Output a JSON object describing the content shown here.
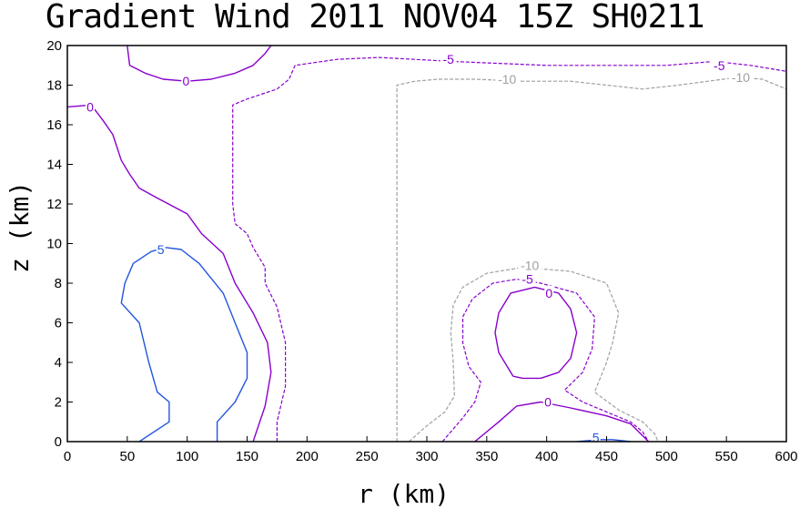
{
  "chart_data": {
    "type": "contour",
    "title": "Gradient Wind 2011 NOV04 15Z  SH0211",
    "xlabel": "r (km)",
    "ylabel": "z (km)",
    "xlim": [
      0,
      600
    ],
    "ylim": [
      0,
      20
    ],
    "xticks": [
      0,
      50,
      100,
      150,
      200,
      250,
      300,
      350,
      400,
      450,
      500,
      550,
      600
    ],
    "yticks": [
      0,
      2,
      4,
      6,
      8,
      10,
      12,
      14,
      16,
      18,
      20
    ],
    "contours": [
      {
        "level": 5,
        "color": "#2255dd",
        "dashed": false,
        "label": "5",
        "points": [
          [
            60,
            0
          ],
          [
            85,
            1
          ],
          [
            85,
            2
          ],
          [
            75,
            2.5
          ],
          [
            68,
            4
          ],
          [
            60,
            6
          ],
          [
            45,
            7
          ],
          [
            48,
            8
          ],
          [
            55,
            9
          ],
          [
            70,
            9.6
          ],
          [
            82,
            9.8
          ],
          [
            95,
            9.7
          ],
          [
            110,
            9
          ],
          [
            130,
            7.5
          ],
          [
            140,
            6
          ],
          [
            150,
            4.5
          ],
          [
            150,
            3.2
          ],
          [
            140,
            2
          ],
          [
            125,
            1
          ],
          [
            125,
            0
          ]
        ]
      },
      {
        "level": 5,
        "color": "#2255dd",
        "dashed": false,
        "label": "5",
        "points": [
          [
            425,
            0
          ],
          [
            445,
            0.1
          ],
          [
            455,
            0.1
          ],
          [
            470,
            0
          ],
          [
            478,
            -0.1
          ]
        ]
      },
      {
        "level": 0,
        "color": "#8800cc",
        "dashed": false,
        "label": "0",
        "points": [
          [
            0,
            16.9
          ],
          [
            20,
            17
          ],
          [
            30,
            16.2
          ],
          [
            38,
            15.5
          ],
          [
            45,
            14.2
          ],
          [
            52,
            13.5
          ],
          [
            60,
            12.8
          ],
          [
            75,
            12.3
          ],
          [
            100,
            11.5
          ],
          [
            112,
            10.5
          ],
          [
            130,
            9.5
          ],
          [
            140,
            8
          ],
          [
            155,
            6.5
          ],
          [
            167,
            5
          ],
          [
            170,
            3.5
          ],
          [
            165,
            1.8
          ],
          [
            155,
            0
          ]
        ]
      },
      {
        "level": 0,
        "color": "#8800cc",
        "dashed": false,
        "label": "0",
        "points": [
          [
            50,
            20
          ],
          [
            52,
            19
          ],
          [
            65,
            18.6
          ],
          [
            80,
            18.3
          ],
          [
            100,
            18.2
          ],
          [
            120,
            18.3
          ],
          [
            140,
            18.6
          ],
          [
            155,
            19
          ],
          [
            165,
            19.6
          ],
          [
            170,
            20
          ]
        ]
      },
      {
        "level": 0,
        "color": "#8800cc",
        "dashed": false,
        "label": "0",
        "points": [
          [
            372,
            3.3
          ],
          [
            380,
            3.2
          ],
          [
            395,
            3.2
          ],
          [
            410,
            3.5
          ],
          [
            420,
            4.2
          ],
          [
            425,
            5.5
          ],
          [
            420,
            6.7
          ],
          [
            410,
            7.5
          ],
          [
            390,
            7.8
          ],
          [
            370,
            7.5
          ],
          [
            360,
            6.5
          ],
          [
            357,
            5.5
          ],
          [
            360,
            4.5
          ],
          [
            372,
            3.3
          ]
        ]
      },
      {
        "level": 0,
        "color": "#8800cc",
        "dashed": false,
        "label": "0",
        "points": [
          [
            340,
            0
          ],
          [
            360,
            1
          ],
          [
            375,
            1.8
          ],
          [
            395,
            2
          ],
          [
            420,
            1.7
          ],
          [
            450,
            1.3
          ],
          [
            470,
            0.9
          ],
          [
            485,
            0
          ]
        ]
      },
      {
        "level": -5,
        "color": "#8800cc",
        "dashed": true,
        "label": "-5",
        "points": [
          [
            175,
            0
          ],
          [
            175,
            1
          ],
          [
            182,
            2.8
          ],
          [
            182,
            5
          ],
          [
            175,
            6.8
          ],
          [
            165,
            8
          ],
          [
            165,
            8.8
          ],
          [
            155,
            9.8
          ],
          [
            150,
            10.5
          ],
          [
            140,
            11
          ],
          [
            138,
            12
          ],
          [
            138,
            14
          ],
          [
            138,
            17
          ],
          [
            150,
            17.3
          ],
          [
            175,
            17.8
          ],
          [
            185,
            18.3
          ],
          [
            190,
            19
          ],
          [
            225,
            19.3
          ],
          [
            260,
            19.4
          ],
          [
            290,
            19.3
          ],
          [
            320,
            19.2
          ],
          [
            360,
            19.1
          ],
          [
            400,
            19
          ],
          [
            450,
            19
          ],
          [
            500,
            19
          ],
          [
            540,
            19.2
          ],
          [
            570,
            19
          ],
          [
            600,
            18.7
          ]
        ]
      },
      {
        "level": -5,
        "color": "#8800cc",
        "dashed": true,
        "label": "-5",
        "points": [
          [
            313,
            0
          ],
          [
            330,
            1.2
          ],
          [
            340,
            2
          ],
          [
            345,
            3
          ],
          [
            335,
            3.8
          ],
          [
            330,
            5
          ],
          [
            330,
            6.3
          ],
          [
            338,
            7.2
          ],
          [
            355,
            8
          ],
          [
            375,
            8.2
          ],
          [
            395,
            8
          ],
          [
            425,
            7.5
          ],
          [
            440,
            6.3
          ],
          [
            438,
            4.7
          ],
          [
            430,
            3.5
          ],
          [
            415,
            2.6
          ],
          [
            430,
            2
          ],
          [
            450,
            1.5
          ],
          [
            470,
            1
          ],
          [
            480,
            0.5
          ],
          [
            485,
            0
          ]
        ]
      },
      {
        "level": -10,
        "color": "#a0a0a0",
        "dashed": true,
        "label": "-10",
        "points": [
          [
            275,
            0
          ],
          [
            275,
            3
          ],
          [
            275,
            8
          ],
          [
            275,
            12
          ],
          [
            275,
            16
          ],
          [
            275,
            18
          ],
          [
            290,
            18.2
          ],
          [
            310,
            18.3
          ],
          [
            340,
            18.3
          ],
          [
            380,
            18.2
          ],
          [
            420,
            18.2
          ],
          [
            450,
            18
          ],
          [
            480,
            17.8
          ],
          [
            510,
            18
          ],
          [
            560,
            18.4
          ],
          [
            580,
            18.3
          ],
          [
            600,
            17.8
          ]
        ]
      },
      {
        "level": -10,
        "color": "#a0a0a0",
        "dashed": true,
        "label": "-10",
        "points": [
          [
            285,
            0
          ],
          [
            300,
            0.8
          ],
          [
            315,
            1.5
          ],
          [
            323,
            2.3
          ],
          [
            322,
            4
          ],
          [
            320,
            5.5
          ],
          [
            322,
            6.9
          ],
          [
            330,
            7.8
          ],
          [
            350,
            8.5
          ],
          [
            380,
            8.8
          ],
          [
            420,
            8.6
          ],
          [
            450,
            8
          ],
          [
            460,
            6.5
          ],
          [
            455,
            5
          ],
          [
            450,
            4
          ],
          [
            440,
            2.5
          ],
          [
            460,
            1.6
          ],
          [
            480,
            1
          ],
          [
            490,
            0.4
          ],
          [
            493,
            0
          ]
        ]
      }
    ],
    "labels": [
      {
        "text": "0",
        "x": 99,
        "y": 18.2,
        "color": "#8800cc"
      },
      {
        "text": "0",
        "x": 19,
        "y": 16.9,
        "color": "#8800cc"
      },
      {
        "text": "-5",
        "x": 318,
        "y": 19.3,
        "color": "#8800cc"
      },
      {
        "text": "-5",
        "x": 544,
        "y": 19.0,
        "color": "#8800cc"
      },
      {
        "text": "-10",
        "x": 367,
        "y": 18.3,
        "color": "#a0a0a0"
      },
      {
        "text": "-10",
        "x": 562,
        "y": 18.4,
        "color": "#a0a0a0"
      },
      {
        "text": "5",
        "x": 78,
        "y": 9.7,
        "color": "#2255dd"
      },
      {
        "text": "-10",
        "x": 386,
        "y": 8.9,
        "color": "#a0a0a0"
      },
      {
        "text": "-5",
        "x": 384,
        "y": 8.2,
        "color": "#8800cc"
      },
      {
        "text": "0",
        "x": 402,
        "y": 7.5,
        "color": "#8800cc"
      },
      {
        "text": "0",
        "x": 401,
        "y": 2.0,
        "color": "#8800cc"
      },
      {
        "text": "5",
        "x": 441,
        "y": 0.2,
        "color": "#2255dd"
      }
    ]
  }
}
